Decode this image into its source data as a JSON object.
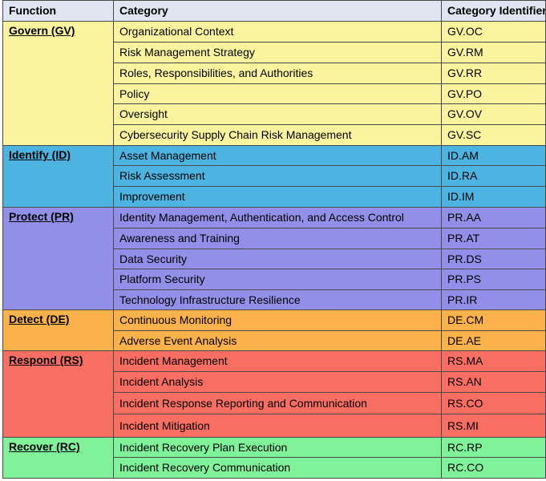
{
  "header": {
    "function": "Function",
    "category": "Category",
    "identifier": "Category Identifier"
  },
  "colors": {
    "header": "#dfe5f1",
    "govern": "#faf49e",
    "identify": "#4db4e2",
    "protect": "#928fe8",
    "detect": "#fbb24a",
    "respond": "#f86e63",
    "recover": "#7ff29a",
    "grid": "#4a4a4a"
  },
  "groups": [
    {
      "function": "Govern (GV)",
      "color_key": "govern",
      "rows": [
        {
          "category": "Organizational Context",
          "id": "GV.OC"
        },
        {
          "category": "Risk Management Strategy",
          "id": "GV.RM"
        },
        {
          "category": "Roles, Responsibilities, and Authorities",
          "id": "GV.RR"
        },
        {
          "category": "Policy",
          "id": "GV.PO"
        },
        {
          "category": "Oversight",
          "id": "GV.OV"
        },
        {
          "category": "Cybersecurity Supply Chain Risk Management",
          "id": "GV.SC"
        }
      ]
    },
    {
      "function": "Identify (ID)",
      "color_key": "identify",
      "rows": [
        {
          "category": "Asset Management",
          "id": "ID.AM"
        },
        {
          "category": "Risk Assessment",
          "id": "ID.RA"
        },
        {
          "category": "Improvement",
          "id": "ID.IM"
        }
      ]
    },
    {
      "function": "Protect (PR)",
      "color_key": "protect",
      "rows": [
        {
          "category": "Identity Management, Authentication, and Access Control",
          "id": "PR.AA"
        },
        {
          "category": "Awareness and Training",
          "id": "PR.AT"
        },
        {
          "category": "Data Security",
          "id": "PR.DS"
        },
        {
          "category": "Platform Security",
          "id": "PR.PS"
        },
        {
          "category": "Technology Infrastructure Resilience",
          "id": "PR.IR"
        }
      ]
    },
    {
      "function": "Detect (DE)",
      "color_key": "detect",
      "rows": [
        {
          "category": "Continuous Monitoring",
          "id": "DE.CM"
        },
        {
          "category": "Adverse Event Analysis",
          "id": "DE.AE"
        }
      ]
    },
    {
      "function": "Respond (RS)",
      "color_key": "respond",
      "rows": [
        {
          "category": "Incident Management",
          "id": "RS.MA"
        },
        {
          "category": "Incident Analysis",
          "id": "RS.AN"
        },
        {
          "category": "Incident Response Reporting and Communication",
          "id": "RS.CO"
        },
        {
          "category": "Incident Mitigation",
          "id": "RS.MI"
        }
      ]
    },
    {
      "function": "Recover (RC)",
      "color_key": "recover",
      "rows": [
        {
          "category": "Incident Recovery Plan Execution",
          "id": "RC.RP"
        },
        {
          "category": "Incident Recovery Communication",
          "id": "RC.CO"
        }
      ]
    }
  ]
}
